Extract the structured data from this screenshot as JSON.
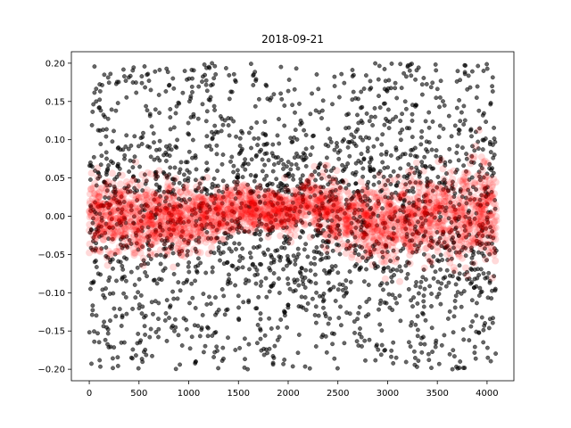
{
  "chart_data": {
    "type": "scatter",
    "title": "2018-09-21",
    "xlabel": "",
    "ylabel": "",
    "xlim": [
      -180,
      4270
    ],
    "ylim": [
      -0.215,
      0.215
    ],
    "x_ticks": [
      0,
      500,
      1000,
      1500,
      2000,
      2500,
      3000,
      3500,
      4000
    ],
    "y_ticks": [
      -0.2,
      -0.15,
      -0.1,
      -0.05,
      0.0,
      0.05,
      0.1,
      0.15,
      0.2
    ],
    "x_tick_labels": [
      "0",
      "500",
      "1000",
      "1500",
      "2000",
      "2500",
      "3000",
      "3500",
      "4000"
    ],
    "y_tick_labels": [
      "−0.20",
      "−0.15",
      "−0.10",
      "−0.05",
      "0.00",
      "0.05",
      "0.10",
      "0.15",
      "0.20"
    ],
    "grid": false,
    "series": [
      {
        "color": "#000000",
        "alpha": 0.6,
        "description": "uniform scatter over x in [0, 4096], y in [-0.2, 0.2], denser near y = 0",
        "x_range": [
          0,
          4096
        ],
        "y_range": [
          -0.2,
          0.2
        ],
        "point_count": 4096
      },
      {
        "color": "#ff0000",
        "alpha": 0.15,
        "description": "band centered near y = 0 with half-width about 0.03, widening at the edges",
        "x_range": [
          0,
          4096
        ],
        "center_profile": [
          [
            0,
            0.005
          ],
          [
            500,
            0.0
          ],
          [
            1000,
            -0.005
          ],
          [
            1500,
            0.01
          ],
          [
            2000,
            0.005
          ],
          [
            2200,
            0.02
          ],
          [
            2500,
            0.0
          ],
          [
            3000,
            -0.01
          ],
          [
            3500,
            0.0
          ],
          [
            4096,
            0.005
          ]
        ],
        "halfwidth_profile": [
          [
            0,
            0.03
          ],
          [
            500,
            0.035
          ],
          [
            1000,
            0.03
          ],
          [
            1500,
            0.02
          ],
          [
            2000,
            0.02
          ],
          [
            2500,
            0.03
          ],
          [
            3000,
            0.035
          ],
          [
            3500,
            0.04
          ],
          [
            4096,
            0.05
          ]
        ],
        "point_count": 4096
      }
    ]
  }
}
